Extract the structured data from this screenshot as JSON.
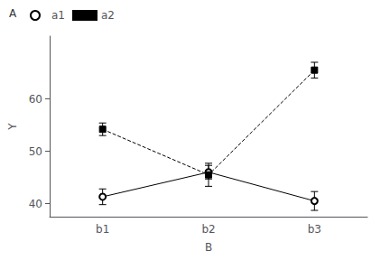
{
  "chart_data": {
    "type": "line",
    "xlabel": "B",
    "ylabel": "Y",
    "categories": [
      "b1",
      "b2",
      "b3"
    ],
    "series": [
      {
        "name": "a1",
        "color": "black",
        "marker": "open_circle",
        "line_style": "solid",
        "values": [
          41.3,
          46.0,
          40.5
        ],
        "errors": [
          1.5,
          1.3,
          1.8
        ]
      },
      {
        "name": "a2",
        "color": "black",
        "marker": "square",
        "line_style": "dashed",
        "values": [
          54.2,
          45.5,
          65.5
        ],
        "errors": [
          1.2,
          2.2,
          1.5
        ]
      }
    ],
    "ylim": [
      37.5,
      72
    ],
    "yticks": [
      40,
      50,
      60
    ],
    "grid": false,
    "legend": "upper left",
    "legend_title": "A"
  }
}
